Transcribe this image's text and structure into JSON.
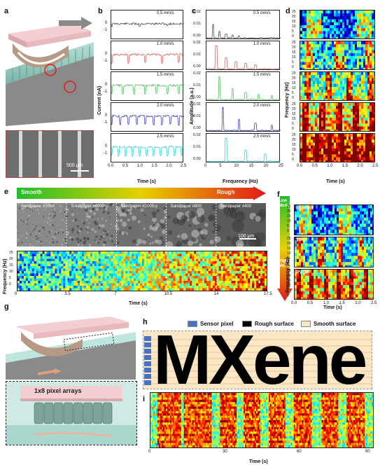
{
  "panel_labels": {
    "a": "a",
    "b": "b",
    "c": "c",
    "d": "d",
    "e": "e",
    "f": "f",
    "g": "g",
    "h": "h",
    "i": "i"
  },
  "panel_a": {
    "scale_bar": "500 μm"
  },
  "panel_b": {
    "ylabel": "Current (nA)",
    "xlabel": "Time (s)",
    "xticks": [
      "0.0",
      "0.5",
      "1.0",
      "1.5",
      "2.0",
      "2.5"
    ],
    "yticks": [
      "0",
      "-1"
    ],
    "rows": [
      {
        "label": "0.5 mm/s",
        "color": "#333333"
      },
      {
        "label": "1.0 mm/s",
        "color": "#d44a4a"
      },
      {
        "label": "1.5 mm/s",
        "color": "#3cb44a"
      },
      {
        "label": "2.0 mm/s",
        "color": "#2a2aa8"
      },
      {
        "label": "2.5 mm/s",
        "color": "#22c8c8"
      }
    ]
  },
  "panel_c": {
    "ylabel": "Amplitude (a.u.)",
    "xlabel": "Frequency (Hz)",
    "xticks": [
      "0",
      "5",
      "10",
      "15",
      "20",
      "25"
    ],
    "rows": [
      {
        "label": "0.5 mm/s",
        "color": "#333333",
        "yticks": [
          "0.02",
          "0.01",
          "0.00"
        ]
      },
      {
        "label": "1.0 mm/s",
        "color": "#d44a4a",
        "yticks": [
          "0.02",
          "0.01",
          "0.00"
        ]
      },
      {
        "label": "1.5 mm/s",
        "color": "#3cb44a",
        "yticks": [
          "0.02",
          "0.01",
          "0.00"
        ]
      },
      {
        "label": "2.0 mm/s",
        "color": "#2a2aa8",
        "yticks": [
          "0.02",
          "0.01",
          "0.00"
        ]
      },
      {
        "label": "2.5 mm/s",
        "color": "#22c8c8",
        "yticks": [
          "0.02",
          "0.01",
          "0.00"
        ]
      }
    ]
  },
  "panel_d": {
    "ylabel": "Frequency (Hz)",
    "xlabel": "Time (s)",
    "xticks": [
      "0.0",
      "0.5",
      "1.0",
      "1.5",
      "2.0",
      "2.5"
    ],
    "yticks": [
      "25",
      "20",
      "15",
      "10",
      "5",
      "0"
    ]
  },
  "panel_e": {
    "smooth": "Smooth",
    "rough": "Rough",
    "sandpapers": [
      "Sandpaper #7000",
      "Sandpaper #4000",
      "Sandpaper #2000",
      "Sandpaper #800",
      "Sandpaper #400"
    ],
    "scale_bar": "100 μm",
    "ylabel": "Frequency (Hz)",
    "xlabel": "Time (s)",
    "xticks": [
      "0",
      "3.5",
      "7",
      "10.5",
      "14",
      "17.5"
    ],
    "yticks": [
      "25",
      "20",
      "15",
      "10",
      "5",
      "0"
    ]
  },
  "panel_f": {
    "low": "Low Modulus",
    "high": "High Modulus",
    "materials": [
      "Ecoflex",
      "TPU",
      "PVDF"
    ],
    "ylabel": "Frequency (Hz)",
    "xlabel": "Time (s)",
    "xticks": [
      "0.0",
      "0.5",
      "1.0",
      "1.5",
      "2.0",
      "2.5"
    ],
    "yticks": [
      "25",
      "20",
      "15",
      "10",
      "5",
      "0"
    ]
  },
  "panel_g": {
    "array_label": "1x8 pixel arrays"
  },
  "panel_h": {
    "legend": [
      {
        "label": "Sensor pixel",
        "color": "#4472c4"
      },
      {
        "label": "Rough surface",
        "color": "#000000"
      },
      {
        "label": "Smooth surface",
        "color": "#fbe7c6"
      }
    ],
    "word": "MXene"
  },
  "panel_i": {
    "xlabel": "Time (s)",
    "xticks": [
      "0",
      "30",
      "60",
      "90"
    ]
  },
  "colors": {
    "jet_low": "#0a3cc8",
    "jet_high": "#d81e1e",
    "bg": "#ffffff"
  }
}
